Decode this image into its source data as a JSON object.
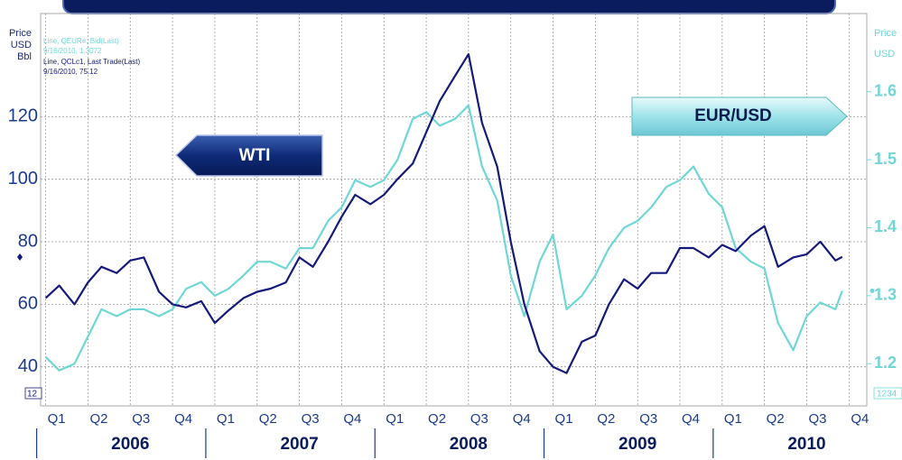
{
  "chart_data": {
    "type": "line",
    "y_axis_label": [
      "Price",
      "USD",
      "Bbl"
    ],
    "y2_axis_label": [
      "Price",
      "USD"
    ],
    "legend_text": [
      "Line, QEUR=, Bid(Last)",
      "9/16/2010, 1.3072",
      "Line, QCLc1, Last Trade(Last)",
      "9/16/2010, 75.12"
    ],
    "annotations": [
      "WTI",
      "EUR/USD"
    ],
    "corner_labels": [
      "12",
      "1234"
    ],
    "x": [
      2006,
      2006.08,
      2006.17,
      2006.25,
      2006.33,
      2006.42,
      2006.5,
      2006.58,
      2006.67,
      2006.75,
      2006.83,
      2006.92,
      2007,
      2007.08,
      2007.17,
      2007.25,
      2007.33,
      2007.42,
      2007.5,
      2007.58,
      2007.67,
      2007.75,
      2007.83,
      2007.92,
      2008,
      2008.08,
      2008.17,
      2008.25,
      2008.33,
      2008.42,
      2008.5,
      2008.58,
      2008.67,
      2008.75,
      2008.83,
      2008.92,
      2009,
      2009.08,
      2009.17,
      2009.25,
      2009.33,
      2009.42,
      2009.5,
      2009.58,
      2009.67,
      2009.75,
      2009.83,
      2009.92,
      2010,
      2010.08,
      2010.17,
      2010.25,
      2010.33,
      2010.42,
      2010.5,
      2010.58,
      2010.67,
      2010.71
    ],
    "series": [
      {
        "name": "QCLc1",
        "color": "#14197a",
        "axis": "y",
        "values": [
          62,
          66,
          60,
          67,
          72,
          70,
          74,
          75,
          64,
          60,
          59,
          61,
          54,
          58,
          62,
          64,
          65,
          67,
          75,
          72,
          80,
          88,
          95,
          92,
          95,
          100,
          105,
          115,
          125,
          133,
          140,
          118,
          104,
          80,
          60,
          45,
          40,
          38,
          48,
          50,
          60,
          68,
          65,
          70,
          70,
          78,
          78,
          75,
          79,
          77,
          82,
          85,
          72,
          75,
          76,
          80,
          74,
          75.12
        ]
      },
      {
        "name": "QEUR=",
        "color": "#6fd6d6",
        "axis": "y2",
        "values": [
          1.21,
          1.19,
          1.2,
          1.24,
          1.28,
          1.27,
          1.28,
          1.28,
          1.27,
          1.28,
          1.31,
          1.32,
          1.3,
          1.31,
          1.33,
          1.35,
          1.35,
          1.34,
          1.37,
          1.37,
          1.41,
          1.43,
          1.47,
          1.46,
          1.47,
          1.5,
          1.56,
          1.57,
          1.55,
          1.56,
          1.58,
          1.49,
          1.44,
          1.33,
          1.27,
          1.35,
          1.39,
          1.28,
          1.3,
          1.33,
          1.37,
          1.4,
          1.41,
          1.43,
          1.46,
          1.47,
          1.49,
          1.45,
          1.43,
          1.37,
          1.35,
          1.34,
          1.26,
          1.22,
          1.27,
          1.29,
          1.28,
          1.3072
        ]
      }
    ],
    "xlim": [
      2005.97,
      2010.855
    ],
    "ylim": [
      27.5,
      153
    ],
    "yticks": [
      40,
      60,
      80,
      100,
      120
    ],
    "y2lim": [
      1.138,
      1.715
    ],
    "y2ticks": [
      1.2,
      1.3,
      1.4,
      1.5,
      1.6
    ],
    "xticks": [
      {
        "value": 2006,
        "label": "Q1"
      },
      {
        "value": 2006.25,
        "label": "Q2"
      },
      {
        "value": 2006.5,
        "label": "Q3"
      },
      {
        "value": 2006.75,
        "label": "Q4"
      },
      {
        "value": 2007,
        "label": "Q1"
      },
      {
        "value": 2007.25,
        "label": "Q2"
      },
      {
        "value": 2007.5,
        "label": "Q3"
      },
      {
        "value": 2007.75,
        "label": "Q4"
      },
      {
        "value": 2008,
        "label": "Q1"
      },
      {
        "value": 2008.25,
        "label": "Q2"
      },
      {
        "value": 2008.5,
        "label": "Q3"
      },
      {
        "value": 2008.75,
        "label": "Q4"
      },
      {
        "value": 2009,
        "label": "Q1"
      },
      {
        "value": 2009.25,
        "label": "Q2"
      },
      {
        "value": 2009.5,
        "label": "Q3"
      },
      {
        "value": 2009.75,
        "label": "Q4"
      },
      {
        "value": 2010,
        "label": "Q1"
      },
      {
        "value": 2010.25,
        "label": "Q2"
      },
      {
        "value": 2010.5,
        "label": "Q3"
      },
      {
        "value": 2010.75,
        "label": "Q4"
      }
    ],
    "year_labels": [
      {
        "value": 2006.5,
        "label": "2006"
      },
      {
        "value": 2007.5,
        "label": "2007"
      },
      {
        "value": 2008.5,
        "label": "2008"
      },
      {
        "value": 2009.5,
        "label": "2009"
      },
      {
        "value": 2010.5,
        "label": "2010"
      }
    ],
    "grid": true
  }
}
